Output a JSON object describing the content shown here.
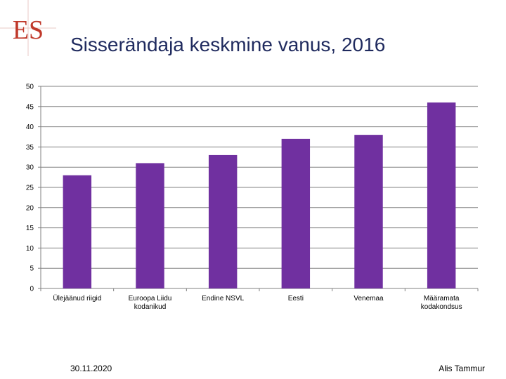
{
  "slide": {
    "logo_text": "ES",
    "title": "Sisserändaja keskmine vanus, 2016",
    "footer_date": "30.11.2020",
    "footer_author": "Alis Tammur"
  },
  "colors": {
    "bar": "#7030a0",
    "logo": "#c0392b",
    "title": "#1f2a5e",
    "axis": "#808080"
  },
  "chart_data": {
    "type": "bar",
    "title": "Sisserändaja keskmine vanus, 2016",
    "xlabel": "",
    "ylabel": "",
    "ylim": [
      0,
      50
    ],
    "yticks": [
      0,
      5,
      10,
      15,
      20,
      25,
      30,
      35,
      40,
      45,
      50
    ],
    "grid": true,
    "categories": [
      [
        "Ülejäänud riigid"
      ],
      [
        "Euroopa Liidu",
        "kodanikud"
      ],
      [
        "Endine NSVL"
      ],
      [
        "Eesti"
      ],
      [
        "Venemaa"
      ],
      [
        "Määramata",
        "kodakondsus"
      ]
    ],
    "values": [
      28,
      31,
      33,
      37,
      38,
      46
    ]
  }
}
